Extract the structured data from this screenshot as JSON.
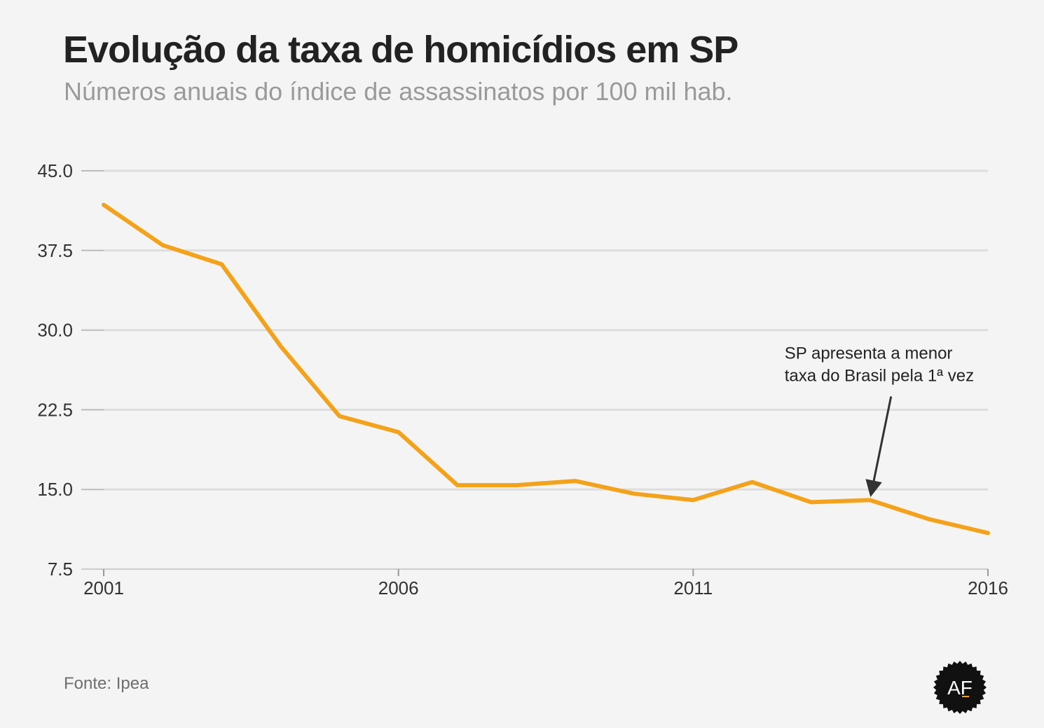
{
  "title": "Evolução da taxa de homicídios em SP",
  "subtitle": "Números anuais do índice de assassinatos por 100 mil hab.",
  "source": "Fonte: Ipea",
  "logo_text": "AF",
  "colors": {
    "line": "#f5a21b",
    "grid": "#dddddd",
    "background": "#f4f4f4",
    "annotation": "#222222"
  },
  "chart_data": {
    "type": "line",
    "x": [
      2001,
      2002,
      2003,
      2004,
      2005,
      2006,
      2007,
      2008,
      2009,
      2010,
      2011,
      2012,
      2013,
      2014,
      2015,
      2016
    ],
    "series": [
      {
        "values": [
          41.8,
          38.0,
          36.2,
          28.5,
          21.9,
          20.4,
          15.4,
          15.4,
          15.8,
          14.6,
          14.0,
          15.7,
          13.8,
          14.0,
          12.2,
          10.9
        ]
      }
    ],
    "xticks": [
      2001,
      2006,
      2011,
      2016
    ],
    "yticks": [
      "7.5",
      "15.0",
      "22.5",
      "30.0",
      "37.5",
      "45.0"
    ],
    "xlim": [
      2001,
      2016
    ],
    "ylim": [
      7.5,
      45.0
    ],
    "grid": "horizontal",
    "xlabel": "",
    "ylabel": "",
    "annotation": {
      "x": 2014,
      "y": 14.0,
      "lines": [
        "SP apresenta a menor",
        "taxa do Brasil pela 1ª vez"
      ]
    }
  }
}
